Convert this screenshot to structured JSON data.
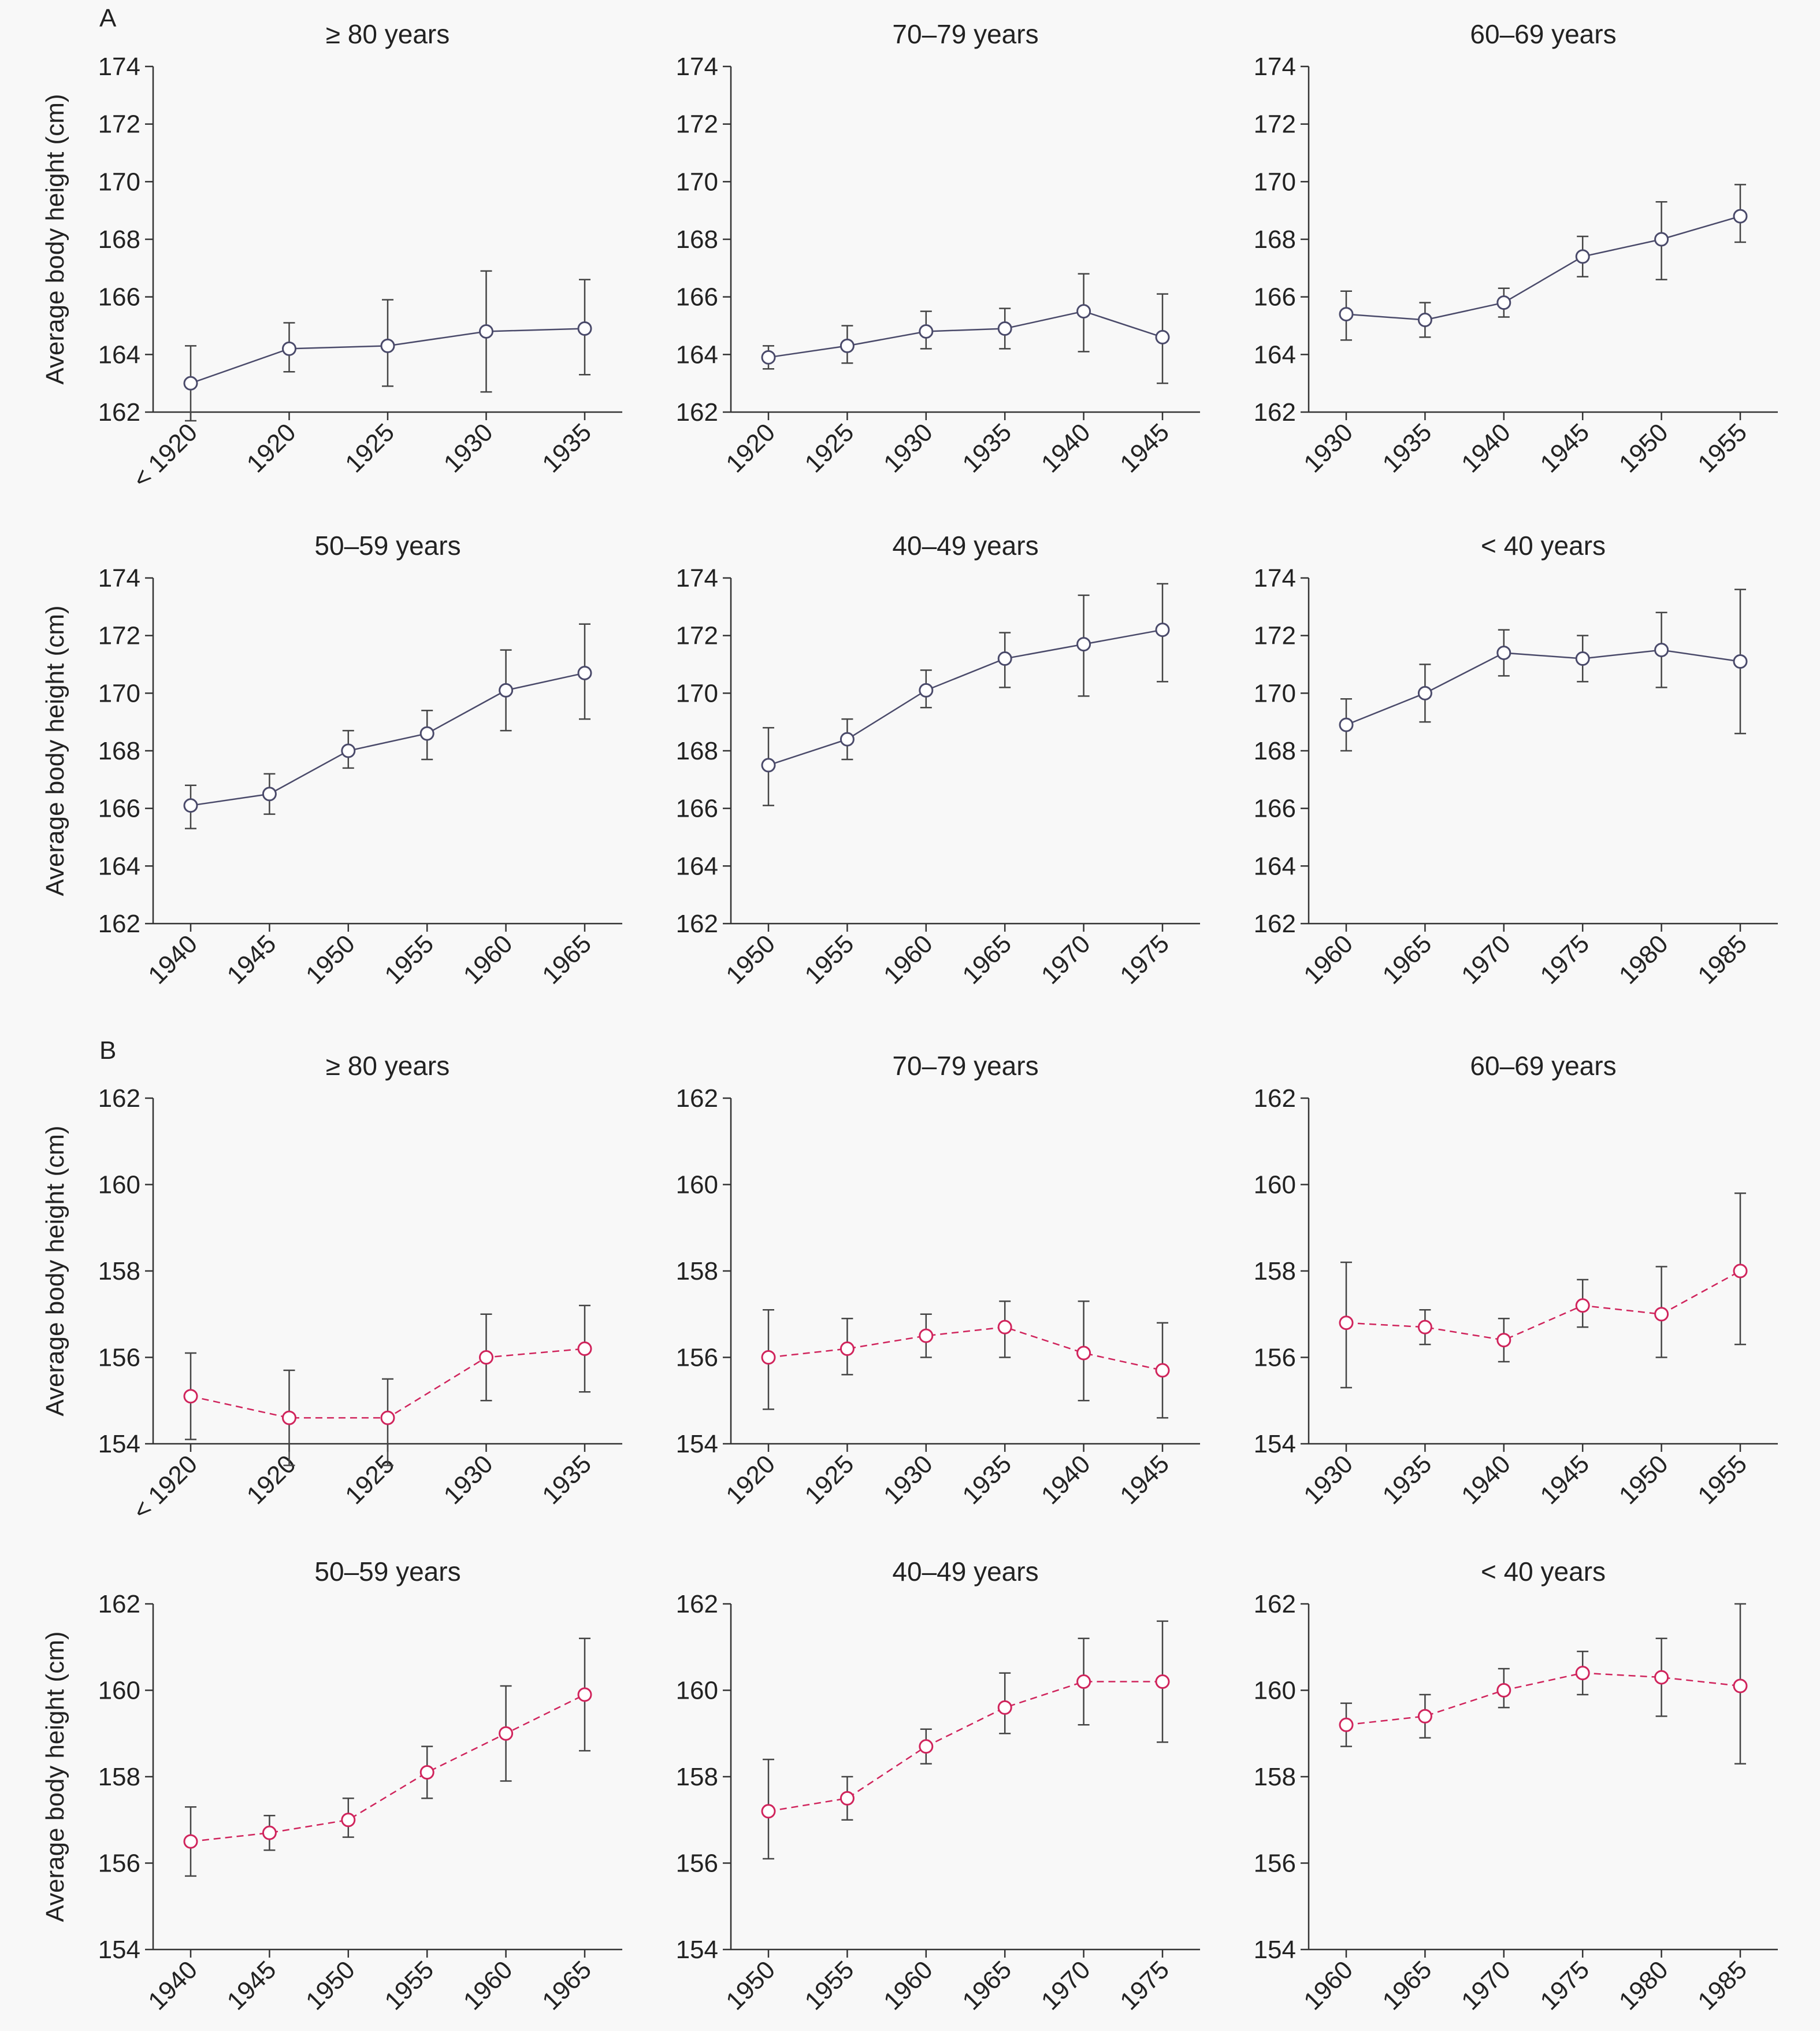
{
  "figure": {
    "colors": {
      "male": "#4a4a6a",
      "female": "#d0245c"
    }
  },
  "panels": [
    {
      "label": "A",
      "series_style": "male"
    },
    {
      "label": "B",
      "series_style": "female"
    }
  ],
  "chart_data": [
    {
      "type": "line",
      "panel": "A",
      "title": "≥ 80 years",
      "ylabel": "Average body height (cm)",
      "ylim": [
        162,
        174
      ],
      "yticks": [
        162,
        164,
        166,
        168,
        170,
        172,
        174
      ],
      "categories": [
        "< 1920",
        "1920",
        "1925",
        "1930",
        "1935"
      ],
      "values": [
        163.0,
        164.2,
        164.3,
        164.8,
        164.9
      ],
      "err_low": [
        161.7,
        163.4,
        162.9,
        162.7,
        163.3
      ],
      "err_high": [
        164.3,
        165.1,
        165.9,
        166.9,
        166.6
      ]
    },
    {
      "type": "line",
      "panel": "A",
      "title": "70–79 years",
      "ylabel": "",
      "ylim": [
        162,
        174
      ],
      "yticks": [
        162,
        164,
        166,
        168,
        170,
        172,
        174
      ],
      "categories": [
        "1920",
        "1925",
        "1930",
        "1935",
        "1940",
        "1945"
      ],
      "values": [
        163.9,
        164.3,
        164.8,
        164.9,
        165.5,
        164.6
      ],
      "err_low": [
        163.5,
        163.7,
        164.2,
        164.2,
        164.1,
        163.0
      ],
      "err_high": [
        164.3,
        165.0,
        165.5,
        165.6,
        166.8,
        166.1
      ]
    },
    {
      "type": "line",
      "panel": "A",
      "title": "60–69 years",
      "ylabel": "",
      "ylim": [
        162,
        174
      ],
      "yticks": [
        162,
        164,
        166,
        168,
        170,
        172,
        174
      ],
      "categories": [
        "1930",
        "1935",
        "1940",
        "1945",
        "1950",
        "1955"
      ],
      "values": [
        165.4,
        165.2,
        165.8,
        167.4,
        168.0,
        168.8
      ],
      "err_low": [
        164.5,
        164.6,
        165.3,
        166.7,
        166.6,
        167.9
      ],
      "err_high": [
        166.2,
        165.8,
        166.3,
        168.1,
        169.3,
        169.9
      ]
    },
    {
      "type": "line",
      "panel": "A",
      "title": "50–59 years",
      "ylabel": "Average body height (cm)",
      "ylim": [
        162,
        174
      ],
      "yticks": [
        162,
        164,
        166,
        168,
        170,
        172,
        174
      ],
      "categories": [
        "1940",
        "1945",
        "1950",
        "1955",
        "1960",
        "1965"
      ],
      "values": [
        166.1,
        166.5,
        168.0,
        168.6,
        170.1,
        170.7
      ],
      "err_low": [
        165.3,
        165.8,
        167.4,
        167.7,
        168.7,
        169.1
      ],
      "err_high": [
        166.8,
        167.2,
        168.7,
        169.4,
        171.5,
        172.4
      ]
    },
    {
      "type": "line",
      "panel": "A",
      "title": "40–49 years",
      "ylabel": "",
      "ylim": [
        162,
        174
      ],
      "yticks": [
        162,
        164,
        166,
        168,
        170,
        172,
        174
      ],
      "categories": [
        "1950",
        "1955",
        "1960",
        "1965",
        "1970",
        "1975"
      ],
      "values": [
        167.5,
        168.4,
        170.1,
        171.2,
        171.7,
        172.2
      ],
      "err_low": [
        166.1,
        167.7,
        169.5,
        170.2,
        169.9,
        170.4
      ],
      "err_high": [
        168.8,
        169.1,
        170.8,
        172.1,
        173.4,
        173.8
      ]
    },
    {
      "type": "line",
      "panel": "A",
      "title": "< 40 years",
      "ylabel": "",
      "ylim": [
        162,
        174
      ],
      "yticks": [
        162,
        164,
        166,
        168,
        170,
        172,
        174
      ],
      "categories": [
        "1960",
        "1965",
        "1970",
        "1975",
        "1980",
        "1985"
      ],
      "values": [
        168.9,
        170.0,
        171.4,
        171.2,
        171.5,
        171.1
      ],
      "err_low": [
        168.0,
        169.0,
        170.6,
        170.4,
        170.2,
        168.6
      ],
      "err_high": [
        169.8,
        171.0,
        172.2,
        172.0,
        172.8,
        173.6
      ]
    },
    {
      "type": "line",
      "panel": "B",
      "title": "≥ 80 years",
      "ylabel": "Average body height (cm)",
      "ylim": [
        154,
        162
      ],
      "yticks": [
        154,
        156,
        158,
        160,
        162
      ],
      "categories": [
        "< 1920",
        "1920",
        "1925",
        "1930",
        "1935"
      ],
      "values": [
        155.1,
        154.6,
        154.6,
        156.0,
        156.2
      ],
      "err_low": [
        154.1,
        153.5,
        153.5,
        155.0,
        155.2
      ],
      "err_high": [
        156.1,
        155.7,
        155.5,
        157.0,
        157.2
      ]
    },
    {
      "type": "line",
      "panel": "B",
      "title": "70–79 years",
      "ylabel": "",
      "ylim": [
        154,
        162
      ],
      "yticks": [
        154,
        156,
        158,
        160,
        162
      ],
      "categories": [
        "1920",
        "1925",
        "1930",
        "1935",
        "1940",
        "1945"
      ],
      "values": [
        156.0,
        156.2,
        156.5,
        156.7,
        156.1,
        155.7
      ],
      "err_low": [
        154.8,
        155.6,
        156.0,
        156.0,
        155.0,
        154.6
      ],
      "err_high": [
        157.1,
        156.9,
        157.0,
        157.3,
        157.3,
        156.8
      ]
    },
    {
      "type": "line",
      "panel": "B",
      "title": "60–69 years",
      "ylabel": "",
      "ylim": [
        154,
        162
      ],
      "yticks": [
        154,
        156,
        158,
        160,
        162
      ],
      "categories": [
        "1930",
        "1935",
        "1940",
        "1945",
        "1950",
        "1955"
      ],
      "values": [
        156.8,
        156.7,
        156.4,
        157.2,
        157.0,
        158.0
      ],
      "err_low": [
        155.3,
        156.3,
        155.9,
        156.7,
        156.0,
        156.3
      ],
      "err_high": [
        158.2,
        157.1,
        156.9,
        157.8,
        158.1,
        159.8
      ]
    },
    {
      "type": "line",
      "panel": "B",
      "title": "50–59 years",
      "ylabel": "Average body height (cm)",
      "ylim": [
        154,
        162
      ],
      "yticks": [
        154,
        156,
        158,
        160,
        162
      ],
      "categories": [
        "1940",
        "1945",
        "1950",
        "1955",
        "1960",
        "1965"
      ],
      "values": [
        156.5,
        156.7,
        157.0,
        158.1,
        159.0,
        159.9
      ],
      "err_low": [
        155.7,
        156.3,
        156.6,
        157.5,
        157.9,
        158.6
      ],
      "err_high": [
        157.3,
        157.1,
        157.5,
        158.7,
        160.1,
        161.2
      ]
    },
    {
      "type": "line",
      "panel": "B",
      "title": "40–49 years",
      "ylabel": "",
      "ylim": [
        154,
        162
      ],
      "yticks": [
        154,
        156,
        158,
        160,
        162
      ],
      "categories": [
        "1950",
        "1955",
        "1960",
        "1965",
        "1970",
        "1975"
      ],
      "values": [
        157.2,
        157.5,
        158.7,
        159.6,
        160.2,
        160.2
      ],
      "err_low": [
        156.1,
        157.0,
        158.3,
        159.0,
        159.2,
        158.8
      ],
      "err_high": [
        158.4,
        158.0,
        159.1,
        160.4,
        161.2,
        161.6
      ]
    },
    {
      "type": "line",
      "panel": "B",
      "title": "< 40 years",
      "ylabel": "",
      "ylim": [
        154,
        162
      ],
      "yticks": [
        154,
        156,
        158,
        160,
        162
      ],
      "categories": [
        "1960",
        "1965",
        "1970",
        "1975",
        "1980",
        "1985"
      ],
      "values": [
        159.2,
        159.4,
        160.0,
        160.4,
        160.3,
        160.1
      ],
      "err_low": [
        158.7,
        158.9,
        159.6,
        159.9,
        159.4,
        158.3
      ],
      "err_high": [
        159.7,
        159.9,
        160.5,
        160.9,
        161.2,
        162.0
      ]
    }
  ]
}
